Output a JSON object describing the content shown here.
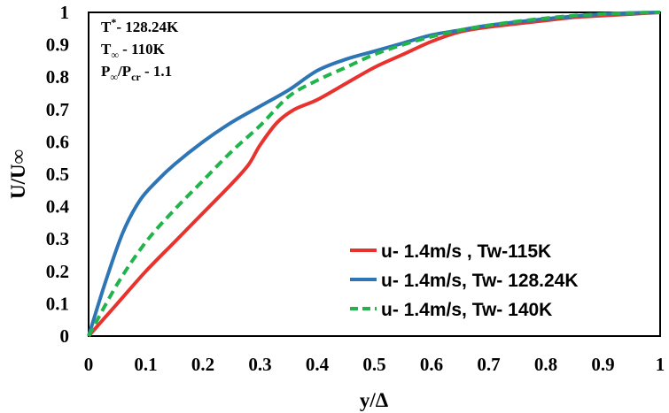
{
  "chart_data": {
    "type": "line",
    "title": "",
    "xlabel": "y/Δ",
    "ylabel": "U/U∞",
    "xlim": [
      0,
      1
    ],
    "ylim": [
      0,
      1
    ],
    "xticks": [
      "0",
      "0.1",
      "0.2",
      "0.3",
      "0.4",
      "0.5",
      "0.6",
      "0.7",
      "0.8",
      "0.9",
      "1"
    ],
    "yticks": [
      "0",
      "0.1",
      "0.2",
      "0.3",
      "0.4",
      "0.5",
      "0.6",
      "0.7",
      "0.8",
      "0.9",
      "1"
    ],
    "grid": false,
    "legend_position": "bottom-right",
    "annotations": [
      {
        "main": "T",
        "sup": "*",
        "sub": "",
        "rest": "- 128.24K"
      },
      {
        "main": "T",
        "sup": "",
        "sub": "∞",
        "rest": " - 110K"
      },
      {
        "main": "P",
        "sup": "",
        "sub": "∞",
        "mid": "/P",
        "sub2": "cr",
        "rest": " - 1.1"
      }
    ],
    "series": [
      {
        "name": "u- 1.4m/s , Tw-115K",
        "color": "#e8322e",
        "dash": "solid",
        "x": [
          0,
          0.05,
          0.1,
          0.15,
          0.2,
          0.25,
          0.28,
          0.3,
          0.33,
          0.36,
          0.4,
          0.45,
          0.5,
          0.55,
          0.6,
          0.65,
          0.7,
          0.75,
          0.8,
          0.85,
          0.9,
          0.95,
          1.0
        ],
        "y": [
          0,
          0.1,
          0.2,
          0.29,
          0.38,
          0.47,
          0.53,
          0.59,
          0.66,
          0.7,
          0.73,
          0.78,
          0.83,
          0.87,
          0.91,
          0.94,
          0.955,
          0.965,
          0.975,
          0.985,
          0.99,
          0.995,
          1.0
        ]
      },
      {
        "name": "u- 1.4m/s, Tw- 128.24K",
        "color": "#2e75b6",
        "dash": "solid",
        "x": [
          0,
          0.03,
          0.06,
          0.09,
          0.12,
          0.15,
          0.2,
          0.25,
          0.3,
          0.35,
          0.4,
          0.45,
          0.5,
          0.55,
          0.6,
          0.65,
          0.7,
          0.8,
          0.9,
          1.0
        ],
        "y": [
          0,
          0.17,
          0.32,
          0.42,
          0.48,
          0.53,
          0.6,
          0.66,
          0.71,
          0.76,
          0.82,
          0.855,
          0.88,
          0.905,
          0.93,
          0.945,
          0.96,
          0.98,
          0.995,
          1.0
        ]
      },
      {
        "name": "u- 1.4m/s, Tw- 140K",
        "color": "#22b34c",
        "dash": "dashed",
        "x": [
          0,
          0.05,
          0.1,
          0.15,
          0.2,
          0.25,
          0.3,
          0.35,
          0.4,
          0.45,
          0.5,
          0.55,
          0.6,
          0.65,
          0.7,
          0.75,
          0.8,
          0.85,
          0.9,
          0.95,
          1.0
        ],
        "y": [
          0,
          0.16,
          0.29,
          0.39,
          0.48,
          0.57,
          0.65,
          0.74,
          0.79,
          0.83,
          0.87,
          0.9,
          0.925,
          0.945,
          0.96,
          0.972,
          0.982,
          0.99,
          0.995,
          0.998,
          1.0
        ]
      }
    ]
  }
}
